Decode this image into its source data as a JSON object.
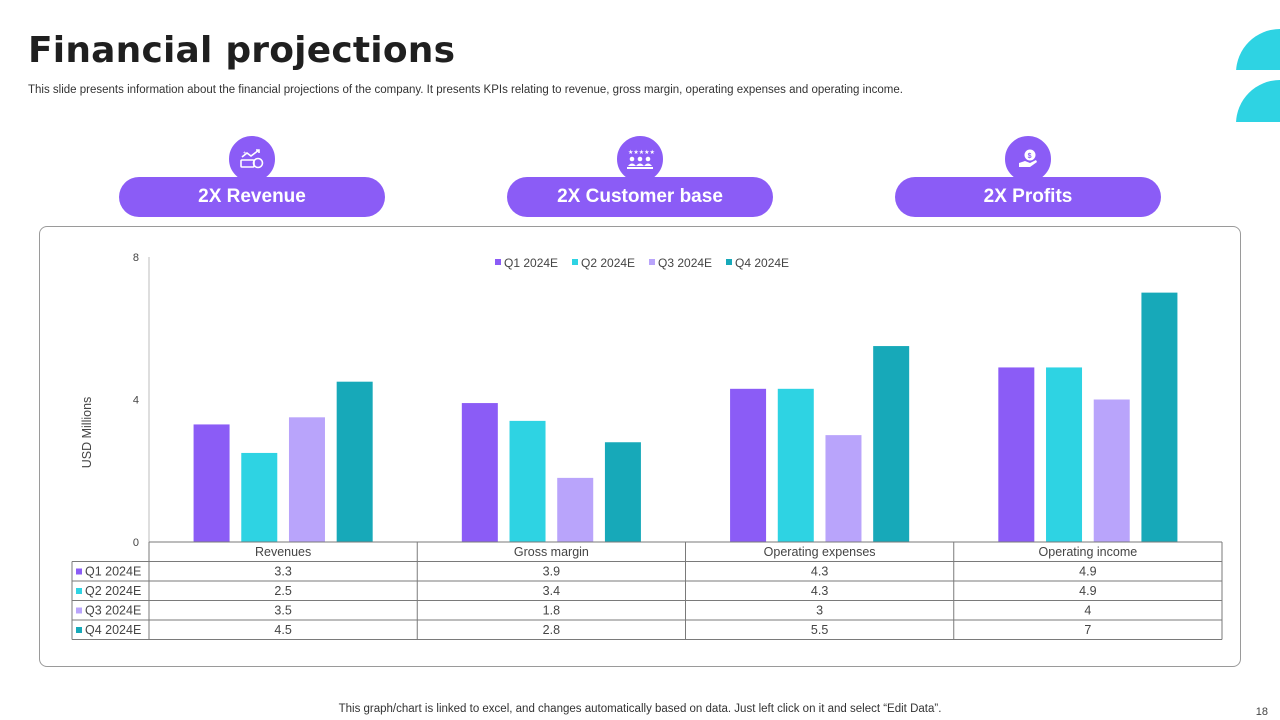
{
  "header": {
    "title": "Financial projections",
    "subtitle": "This slide presents information about the financial projections of the company. It presents KPIs relating to revenue, gross margin, operating expenses and operating income."
  },
  "kpis": [
    {
      "label": "2X Revenue",
      "icon": "revenue-growth-icon"
    },
    {
      "label": "2X Customer base",
      "icon": "customer-group-icon"
    },
    {
      "label": "2X Profits",
      "icon": "money-hand-icon"
    }
  ],
  "colors": {
    "accent": "#8b5cf6",
    "q1": "#8b5cf6",
    "q2": "#2ed3e3",
    "q3": "#b9a4fb",
    "q4": "#17a9b9",
    "deco": "#2ed3e3"
  },
  "chart_data": {
    "type": "bar",
    "title": "",
    "xlabel": "",
    "ylabel": "USD Millions",
    "ylim": [
      0,
      8
    ],
    "yticks": [
      0,
      4,
      8
    ],
    "legend_position": "top",
    "categories": [
      "Revenues",
      "Gross margin",
      "Operating expenses",
      "Operating income"
    ],
    "series": [
      {
        "name": "Q1 2024E",
        "values": [
          3.3,
          3.9,
          4.3,
          4.9
        ],
        "labels": [
          "3.3",
          "3.9",
          "4.3",
          "4.9"
        ],
        "color": "#8b5cf6"
      },
      {
        "name": "Q2 2024E",
        "values": [
          2.5,
          3.4,
          4.3,
          4.9
        ],
        "labels": [
          "2.5",
          "3.4",
          "4.3",
          "4.9"
        ],
        "color": "#2ed3e3"
      },
      {
        "name": "Q3 2024E",
        "values": [
          3.5,
          1.8,
          3,
          4
        ],
        "labels": [
          "3.5",
          "1.8",
          "3",
          "4"
        ],
        "color": "#b9a4fb"
      },
      {
        "name": "Q4 2024E",
        "values": [
          4.5,
          2.8,
          5.5,
          7
        ],
        "labels": [
          "4.5",
          "2.8",
          "5.5",
          "7"
        ],
        "color": "#17a9b9"
      }
    ]
  },
  "footer": {
    "note": "This graph/chart is linked to excel, and changes automatically based on data. Just left click on it and select “Edit Data”.",
    "page_number": "18"
  }
}
